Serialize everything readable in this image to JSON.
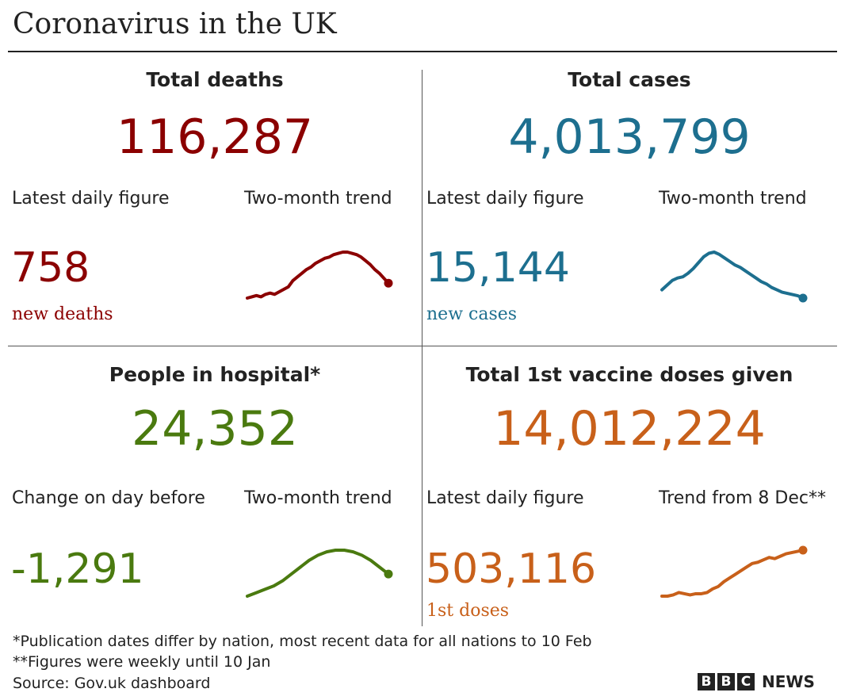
{
  "header": {
    "title": "Coronavirus in the UK"
  },
  "panels": [
    {
      "title": "Total deaths",
      "big_value": "116,287",
      "left_label": "Latest daily figure",
      "right_label": "Two-month trend",
      "daily_value": "758",
      "daily_sublabel": "new deaths",
      "color": "#8b0000"
    },
    {
      "title": "Total cases",
      "big_value": "4,013,799",
      "left_label": "Latest daily figure",
      "right_label": "Two-month trend",
      "daily_value": "15,144",
      "daily_sublabel": "new cases",
      "color": "#1d6f8f"
    },
    {
      "title": "People in hospital*",
      "big_value": "24,352",
      "left_label": "Change on day before",
      "right_label": "Two-month trend",
      "daily_value": "-1,291",
      "daily_sublabel": "",
      "color": "#4a7a0f"
    },
    {
      "title": "Total 1st vaccine doses given",
      "big_value": "14,012,224",
      "left_label": "Latest daily figure",
      "right_label": "Trend from 8 Dec**",
      "daily_value": "503,116",
      "daily_sublabel": "1st doses",
      "color": "#c8601a"
    }
  ],
  "chart_data": [
    {
      "type": "line",
      "title": "",
      "values": [
        8,
        9,
        10,
        9,
        11,
        12,
        11,
        13,
        15,
        17,
        22,
        25,
        28,
        31,
        33,
        36,
        38,
        40,
        41,
        43,
        44,
        45,
        45,
        44,
        43,
        41,
        38,
        35,
        31,
        28,
        24,
        20
      ]
    },
    {
      "type": "line",
      "title": "",
      "values": [
        10,
        14,
        18,
        20,
        21,
        24,
        28,
        33,
        38,
        41,
        42,
        40,
        37,
        34,
        31,
        29,
        26,
        23,
        20,
        17,
        15,
        12,
        10,
        8,
        7,
        6,
        5,
        3
      ]
    },
    {
      "type": "line",
      "title": "",
      "values": [
        3,
        5,
        7,
        9,
        12,
        16,
        20,
        24,
        27,
        29,
        30,
        30,
        29,
        27,
        24,
        20,
        16
      ]
    },
    {
      "type": "line",
      "title": "",
      "values": [
        0,
        0,
        1,
        3,
        2,
        1,
        2,
        2,
        3,
        6,
        8,
        12,
        15,
        18,
        21,
        24,
        27,
        28,
        30,
        32,
        31,
        33,
        35,
        36,
        37,
        38
      ]
    }
  ],
  "footer": {
    "note1": "*Publication dates differ by nation, most recent data for all nations to 10 Feb",
    "note2": "**Figures were weekly until 10 Jan",
    "source": "Source: Gov.uk dashboard"
  },
  "brand": {
    "b1": "B",
    "b2": "B",
    "b3": "C",
    "news": "NEWS"
  }
}
